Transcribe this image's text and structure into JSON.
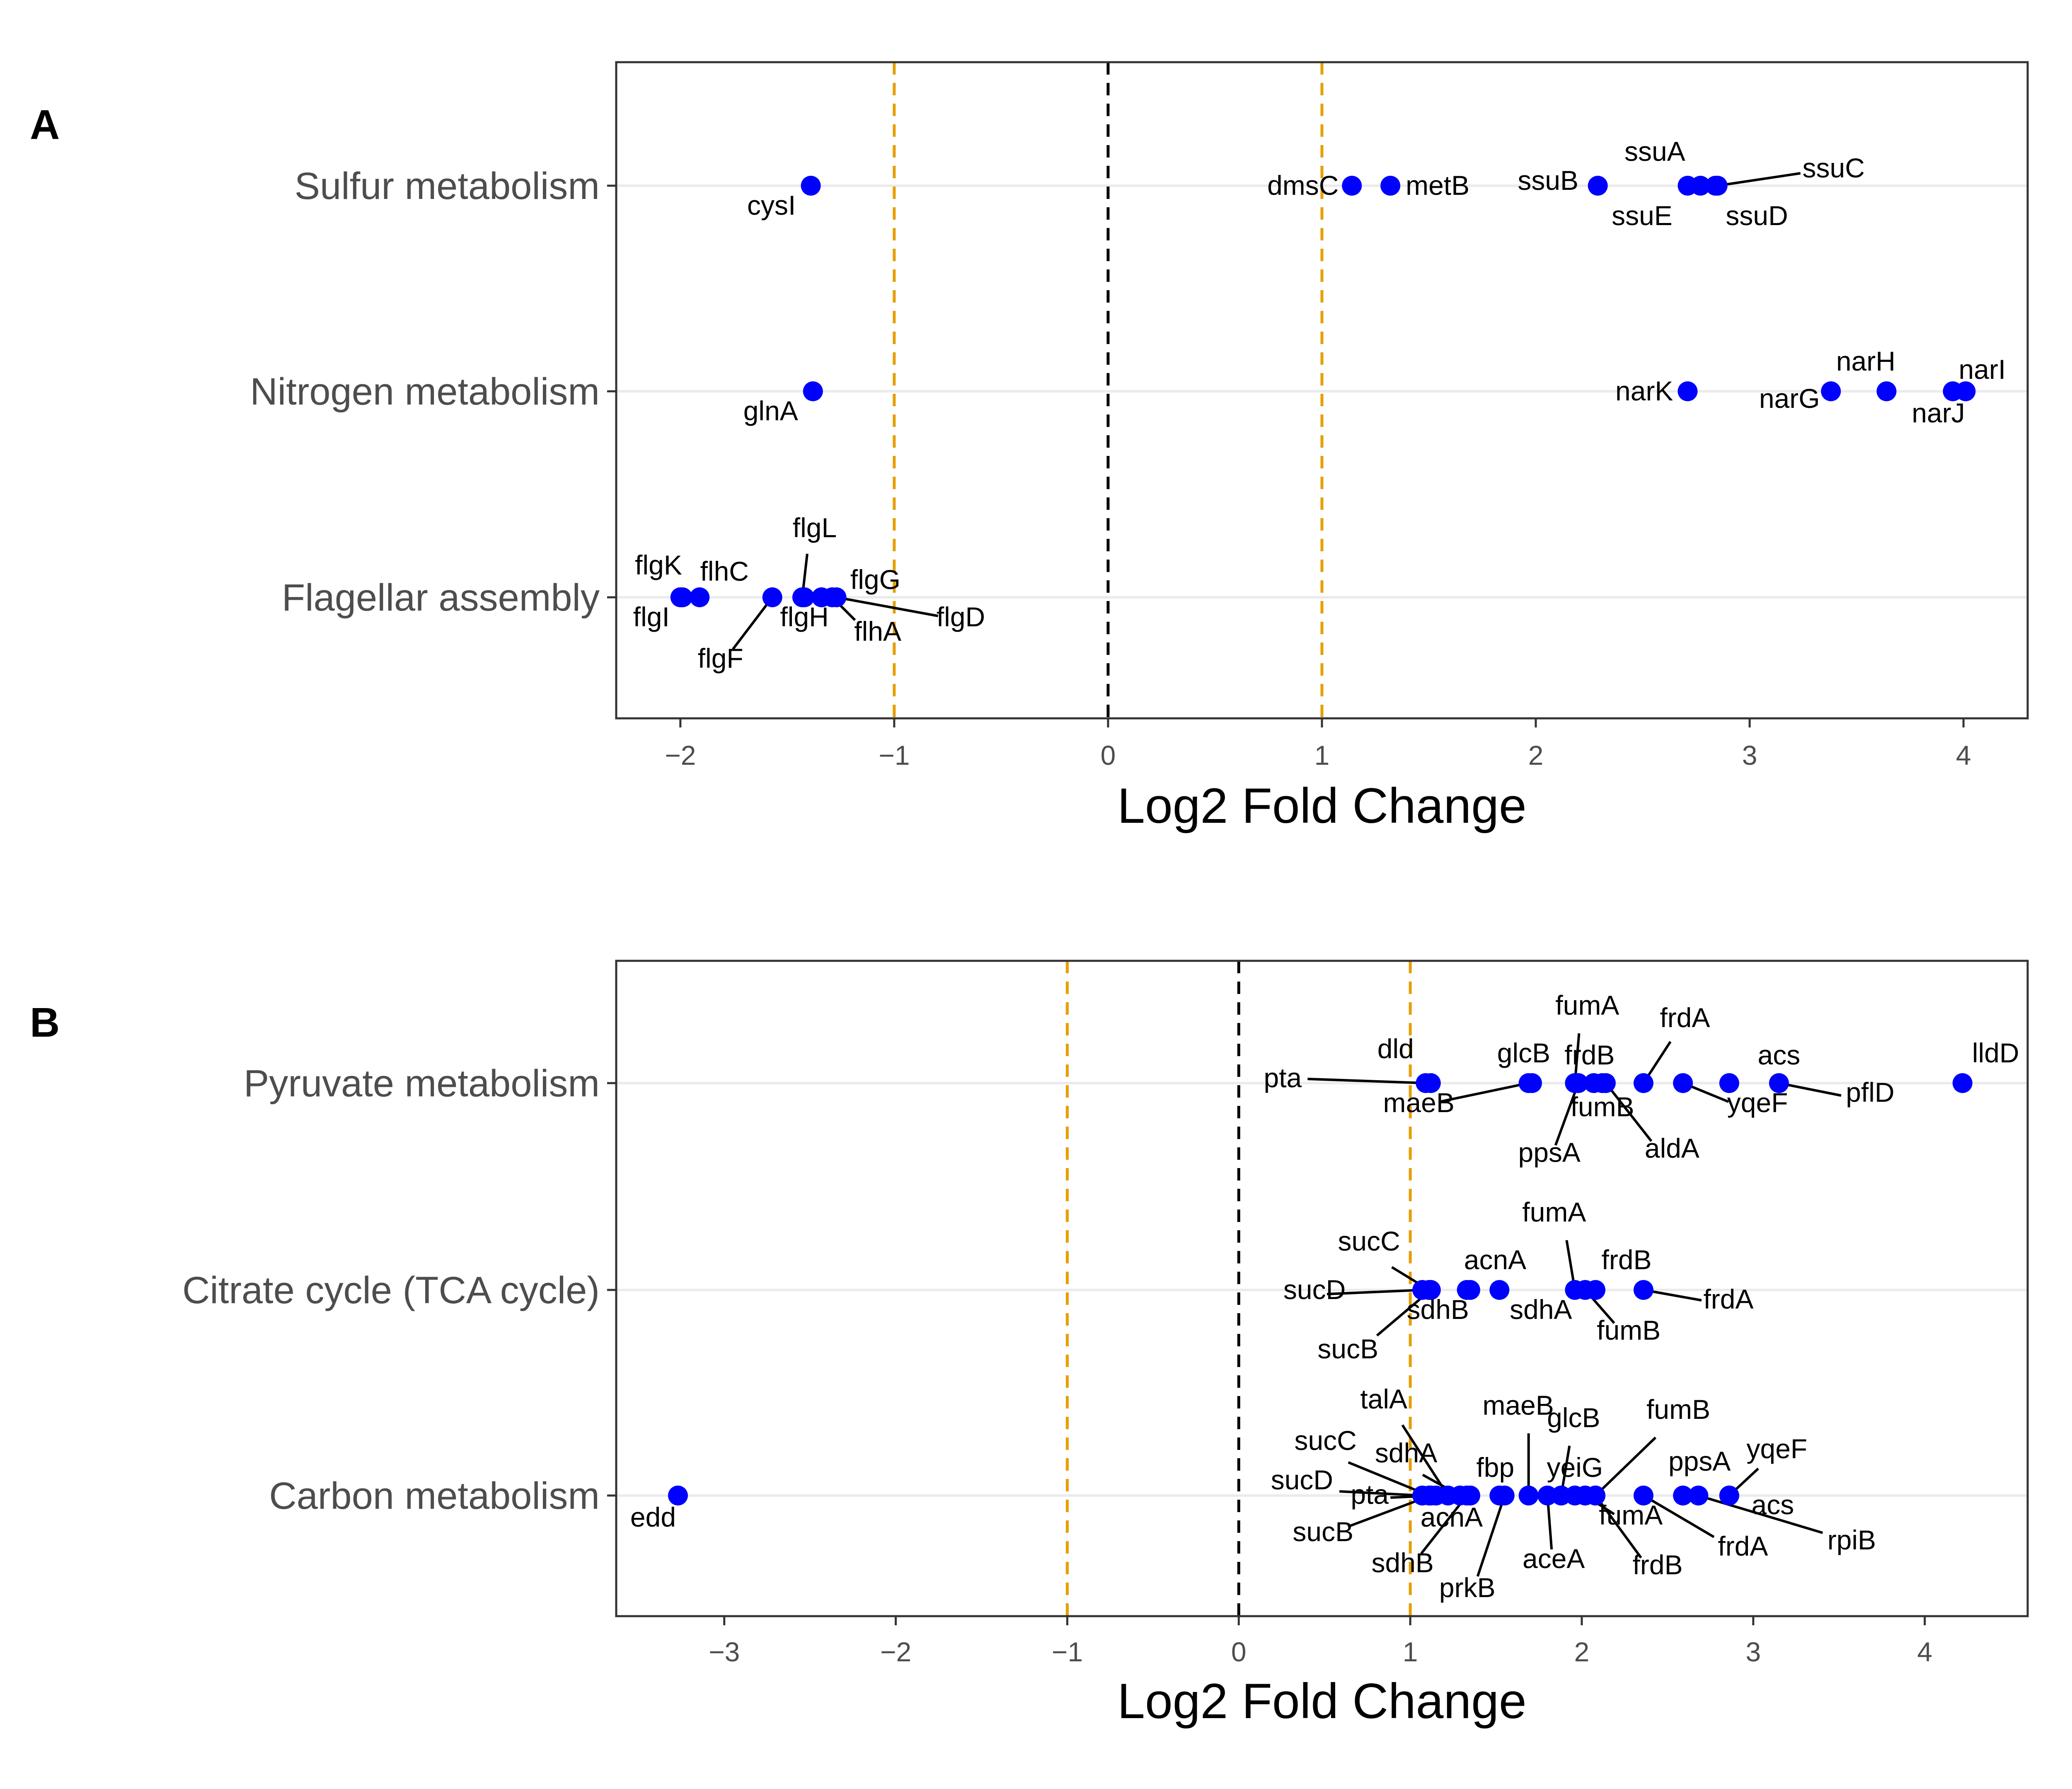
{
  "chart_data": [
    {
      "type": "scatter",
      "panel_label": "A",
      "xlabel": "Log2 Fold Change",
      "ylabel": "",
      "xlim": [
        -2.3,
        4.3
      ],
      "xticks": [
        -2,
        -1,
        0,
        1,
        2,
        3,
        4
      ],
      "tick_labels": [
        "−2",
        "−1",
        "0",
        "1",
        "2",
        "3",
        "4"
      ],
      "reference_lines": [
        {
          "x": -1,
          "style": "dashed",
          "color": "#E69F00"
        },
        {
          "x": 0,
          "style": "dashed",
          "color": "#000000"
        },
        {
          "x": 1,
          "style": "dashed",
          "color": "#E69F00"
        }
      ],
      "categories": [
        "Sulfur metabolism",
        "Nitrogen metabolism",
        "Flagellar assembly"
      ],
      "point_color": "#0000FF",
      "grid": "horizontal major lines",
      "series": [
        {
          "category": "Sulfur metabolism",
          "points": [
            {
              "gene": "cysI",
              "x": -1.39
            },
            {
              "gene": "dmsC",
              "x": 1.14
            },
            {
              "gene": "metB",
              "x": 1.32
            },
            {
              "gene": "ssuB",
              "x": 2.29
            },
            {
              "gene": "ssuE",
              "x": 2.71
            },
            {
              "gene": "ssuA",
              "x": 2.77
            },
            {
              "gene": "ssuD",
              "x": 2.84
            },
            {
              "gene": "ssuC",
              "x": 2.85
            }
          ]
        },
        {
          "category": "Nitrogen metabolism",
          "points": [
            {
              "gene": "glnA",
              "x": -1.38
            },
            {
              "gene": "narK",
              "x": 2.71
            },
            {
              "gene": "narG",
              "x": 3.38
            },
            {
              "gene": "narJ",
              "x": 3.64
            },
            {
              "gene": "narH",
              "x": 3.95
            },
            {
              "gene": "narI",
              "x": 4.01
            }
          ]
        },
        {
          "category": "Flagellar assembly",
          "points": [
            {
              "gene": "flgI",
              "x": -2.0
            },
            {
              "gene": "flgK",
              "x": -1.99
            },
            {
              "gene": "flhC",
              "x": -1.91
            },
            {
              "gene": "flgF",
              "x": -1.57
            },
            {
              "gene": "flgL",
              "x": -1.43
            },
            {
              "gene": "flgH",
              "x": -1.42
            },
            {
              "gene": "flgG",
              "x": -1.34
            },
            {
              "gene": "flhA",
              "x": -1.29
            },
            {
              "gene": "flgD",
              "x": -1.27
            }
          ]
        }
      ]
    },
    {
      "type": "scatter",
      "panel_label": "B",
      "xlabel": "Log2 Fold Change",
      "ylabel": "",
      "xlim": [
        -3.63,
        4.6
      ],
      "xticks": [
        -3,
        -2,
        -1,
        0,
        1,
        2,
        3,
        4
      ],
      "tick_labels": [
        "−3",
        "−2",
        "−1",
        "0",
        "1",
        "2",
        "3",
        "4"
      ],
      "reference_lines": [
        {
          "x": -1,
          "style": "dashed",
          "color": "#E69F00"
        },
        {
          "x": 0,
          "style": "dashed",
          "color": "#000000"
        },
        {
          "x": 1,
          "style": "dashed",
          "color": "#E69F00"
        }
      ],
      "categories": [
        "Pyruvate metabolism",
        "Citrate cycle (TCA cycle)",
        "Carbon metabolism"
      ],
      "point_color": "#0000FF",
      "grid": "horizontal major lines",
      "series": [
        {
          "category": "Pyruvate metabolism",
          "points": [
            {
              "gene": "pta",
              "x": 1.09
            },
            {
              "gene": "dld",
              "x": 1.12
            },
            {
              "gene": "maeB",
              "x": 1.69
            },
            {
              "gene": "glcB",
              "x": 1.71
            },
            {
              "gene": "fumA",
              "x": 1.96
            },
            {
              "gene": "ppsA",
              "x": 1.98
            },
            {
              "gene": "frdB",
              "x": 2.07
            },
            {
              "gene": "fumB",
              "x": 2.12
            },
            {
              "gene": "aldA",
              "x": 2.14
            },
            {
              "gene": "frdA",
              "x": 2.36
            },
            {
              "gene": "yqeF",
              "x": 2.59
            },
            {
              "gene": "acs",
              "x": 2.86
            },
            {
              "gene": "pflD",
              "x": 3.15
            },
            {
              "gene": "lldD",
              "x": 4.22
            }
          ]
        },
        {
          "category": "Citrate cycle (TCA cycle)",
          "points": [
            {
              "gene": "sucD",
              "x": 1.07
            },
            {
              "gene": "sucC",
              "x": 1.11
            },
            {
              "gene": "sucB",
              "x": 1.12
            },
            {
              "gene": "sdhB",
              "x": 1.33
            },
            {
              "gene": "acnA",
              "x": 1.35
            },
            {
              "gene": "sdhA",
              "x": 1.52
            },
            {
              "gene": "fumA",
              "x": 1.96
            },
            {
              "gene": "fumB",
              "x": 2.02
            },
            {
              "gene": "frdB",
              "x": 2.08
            },
            {
              "gene": "frdA",
              "x": 2.36
            }
          ]
        },
        {
          "category": "Carbon metabolism",
          "points": [
            {
              "gene": "edd",
              "x": -3.27
            },
            {
              "gene": "sucD",
              "x": 1.07
            },
            {
              "gene": "sucC",
              "x": 1.11
            },
            {
              "gene": "sucB",
              "x": 1.12
            },
            {
              "gene": "pta",
              "x": 1.15
            },
            {
              "gene": "talA",
              "x": 1.22
            },
            {
              "gene": "sdhA",
              "x": 1.29
            },
            {
              "gene": "sdhB",
              "x": 1.33
            },
            {
              "gene": "acnA",
              "x": 1.35
            },
            {
              "gene": "fbp",
              "x": 1.52
            },
            {
              "gene": "prkB",
              "x": 1.55
            },
            {
              "gene": "maeB",
              "x": 1.69
            },
            {
              "gene": "aceA",
              "x": 1.8
            },
            {
              "gene": "glcB",
              "x": 1.88
            },
            {
              "gene": "yeiG",
              "x": 1.96
            },
            {
              "gene": "fumA",
              "x": 2.02
            },
            {
              "gene": "fumB",
              "x": 2.08
            },
            {
              "gene": "frdB",
              "x": 2.08
            },
            {
              "gene": "frdA",
              "x": 2.36
            },
            {
              "gene": "ppsA",
              "x": 2.59
            },
            {
              "gene": "rpiB",
              "x": 2.68
            },
            {
              "gene": "yqeF",
              "x": 2.86
            },
            {
              "gene": "acs",
              "x": 2.86
            }
          ]
        }
      ]
    }
  ]
}
